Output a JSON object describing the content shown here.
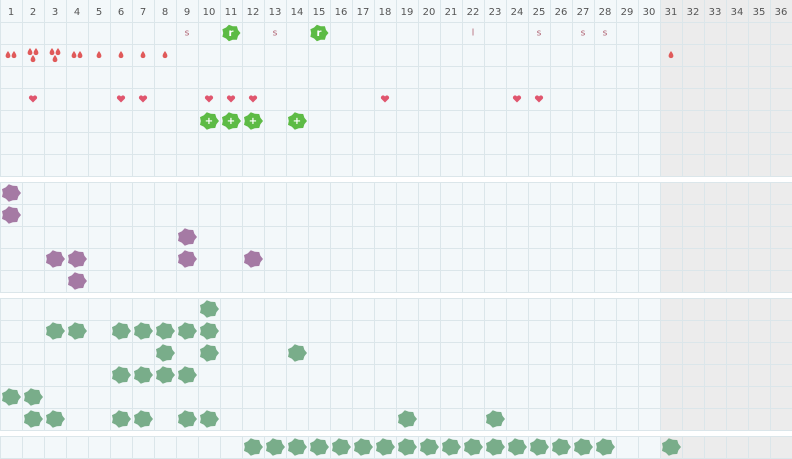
{
  "header": {
    "days": [
      1,
      2,
      3,
      4,
      5,
      6,
      7,
      8,
      9,
      10,
      11,
      12,
      13,
      14,
      15,
      16,
      17,
      18,
      19,
      20,
      21,
      22,
      23,
      24,
      25,
      26,
      27,
      28,
      29,
      30,
      31,
      32,
      33,
      34,
      35,
      36
    ]
  },
  "sections": [
    {
      "rows": [
        [
          {
            "day": 9,
            "kind": "letter",
            "label": "s"
          },
          {
            "day": 11,
            "kind": "badge",
            "label": "r"
          },
          {
            "day": 13,
            "kind": "letter",
            "label": "s"
          },
          {
            "day": 15,
            "kind": "badge",
            "label": "r"
          },
          {
            "day": 22,
            "kind": "letter",
            "label": "l"
          },
          {
            "day": 25,
            "kind": "letter",
            "label": "s"
          },
          {
            "day": 27,
            "kind": "letter",
            "label": "s"
          },
          {
            "day": 28,
            "kind": "letter",
            "label": "s"
          }
        ],
        [
          {
            "day": 1,
            "kind": "drop",
            "count": 2
          },
          {
            "day": 2,
            "kind": "drop",
            "count": 3
          },
          {
            "day": 3,
            "kind": "drop",
            "count": 3
          },
          {
            "day": 4,
            "kind": "drop",
            "count": 2
          },
          {
            "day": 5,
            "kind": "drop",
            "count": 1
          },
          {
            "day": 6,
            "kind": "drop",
            "count": 1
          },
          {
            "day": 7,
            "kind": "drop",
            "count": 1
          },
          {
            "day": 8,
            "kind": "drop",
            "count": 1
          },
          {
            "day": 31,
            "kind": "drop",
            "count": 1
          }
        ],
        [],
        [
          {
            "day": 2,
            "kind": "heart"
          },
          {
            "day": 6,
            "kind": "heart"
          },
          {
            "day": 7,
            "kind": "heart"
          },
          {
            "day": 10,
            "kind": "heart"
          },
          {
            "day": 11,
            "kind": "heart"
          },
          {
            "day": 12,
            "kind": "heart"
          },
          {
            "day": 18,
            "kind": "heart"
          },
          {
            "day": 24,
            "kind": "heart"
          },
          {
            "day": 25,
            "kind": "heart"
          }
        ],
        [
          {
            "day": 10,
            "kind": "plus-blob",
            "label": "+"
          },
          {
            "day": 11,
            "kind": "plus-blob",
            "label": "+"
          },
          {
            "day": 12,
            "kind": "plus-blob",
            "label": "+"
          },
          {
            "day": 14,
            "kind": "plus-blob",
            "label": "+"
          }
        ],
        [],
        []
      ]
    },
    {
      "rows": [
        [
          {
            "day": 1,
            "kind": "purple-blob"
          }
        ],
        [
          {
            "day": 1,
            "kind": "purple-blob"
          }
        ],
        [
          {
            "day": 9,
            "kind": "purple-blob"
          }
        ],
        [
          {
            "day": 3,
            "kind": "purple-blob"
          },
          {
            "day": 4,
            "kind": "purple-blob"
          },
          {
            "day": 9,
            "kind": "purple-blob"
          },
          {
            "day": 12,
            "kind": "purple-blob"
          }
        ],
        [
          {
            "day": 4,
            "kind": "purple-blob"
          }
        ]
      ]
    },
    {
      "rows": [
        [
          {
            "day": 10,
            "kind": "green-blob"
          }
        ],
        [
          {
            "day": 3,
            "kind": "green-blob"
          },
          {
            "day": 4,
            "kind": "green-blob"
          },
          {
            "day": 6,
            "kind": "green-blob"
          },
          {
            "day": 7,
            "kind": "green-blob"
          },
          {
            "day": 8,
            "kind": "green-blob"
          },
          {
            "day": 9,
            "kind": "green-blob"
          },
          {
            "day": 10,
            "kind": "green-blob"
          }
        ],
        [
          {
            "day": 8,
            "kind": "green-blob"
          },
          {
            "day": 10,
            "kind": "green-blob"
          },
          {
            "day": 14,
            "kind": "green-blob"
          }
        ],
        [
          {
            "day": 6,
            "kind": "green-blob"
          },
          {
            "day": 7,
            "kind": "green-blob"
          },
          {
            "day": 8,
            "kind": "green-blob"
          },
          {
            "day": 9,
            "kind": "green-blob"
          }
        ],
        [
          {
            "day": 1,
            "kind": "green-blob"
          },
          {
            "day": 2,
            "kind": "green-blob"
          }
        ],
        [
          {
            "day": 2,
            "kind": "green-blob"
          },
          {
            "day": 3,
            "kind": "green-blob"
          },
          {
            "day": 6,
            "kind": "green-blob"
          },
          {
            "day": 7,
            "kind": "green-blob"
          },
          {
            "day": 9,
            "kind": "green-blob"
          },
          {
            "day": 10,
            "kind": "green-blob"
          },
          {
            "day": 19,
            "kind": "green-blob"
          },
          {
            "day": 23,
            "kind": "green-blob"
          }
        ]
      ]
    },
    {
      "rows": [
        [
          {
            "day": 12,
            "kind": "green-blob"
          },
          {
            "day": 13,
            "kind": "green-blob"
          },
          {
            "day": 14,
            "kind": "green-blob"
          },
          {
            "day": 15,
            "kind": "green-blob"
          },
          {
            "day": 16,
            "kind": "green-blob"
          },
          {
            "day": 17,
            "kind": "green-blob"
          },
          {
            "day": 18,
            "kind": "green-blob"
          },
          {
            "day": 19,
            "kind": "green-blob"
          },
          {
            "day": 20,
            "kind": "green-blob"
          },
          {
            "day": 21,
            "kind": "green-blob"
          },
          {
            "day": 22,
            "kind": "green-blob"
          },
          {
            "day": 23,
            "kind": "green-blob"
          },
          {
            "day": 24,
            "kind": "green-blob"
          },
          {
            "day": 25,
            "kind": "green-blob"
          },
          {
            "day": 26,
            "kind": "green-blob"
          },
          {
            "day": 27,
            "kind": "green-blob"
          },
          {
            "day": 28,
            "kind": "green-blob"
          },
          {
            "day": 31,
            "kind": "green-blob"
          }
        ]
      ]
    }
  ]
}
